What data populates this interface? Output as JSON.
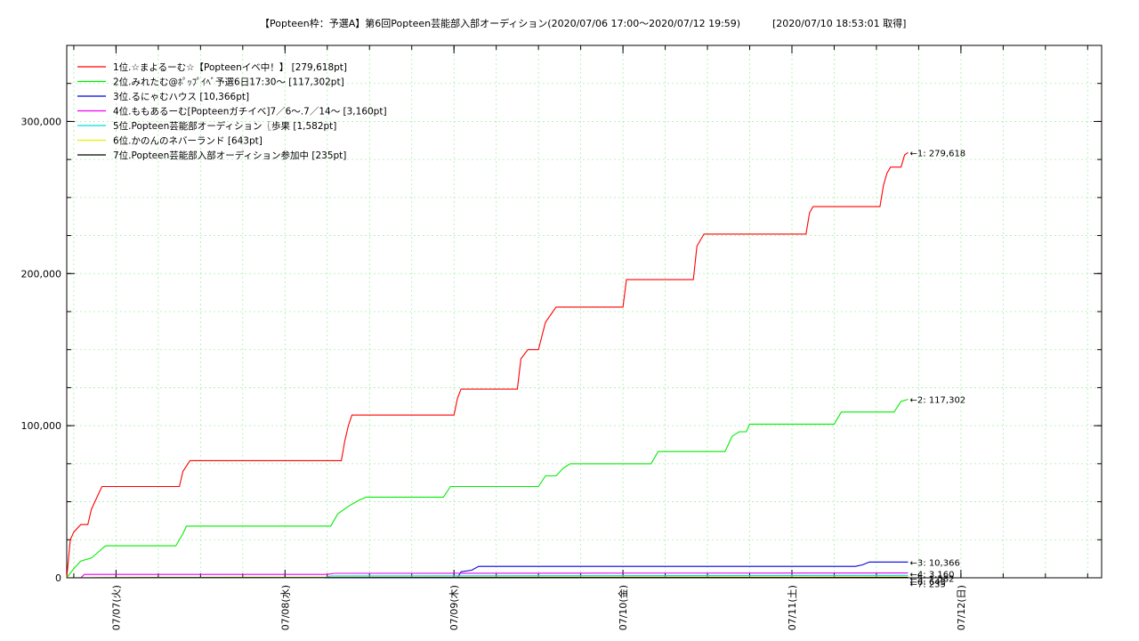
{
  "chart_data": {
    "type": "line",
    "title": "【Popteen枠：予選A】第6回Popteen芸能部入部オーディション(2020/07/06 17:00〜2020/07/12 19:59)",
    "timestamp": "[2020/07/10 18:53:01 取得]",
    "x_axis": {
      "range": [
        "2020-07-06T17:00",
        "2020-07-12T19:59"
      ],
      "tick_labels": [
        {
          "date": "2020-07-07T00:00",
          "label": "07/07(火)"
        },
        {
          "date": "2020-07-08T00:00",
          "label": "07/08(水)"
        },
        {
          "date": "2020-07-09T00:00",
          "label": "07/09(木)"
        },
        {
          "date": "2020-07-10T00:00",
          "label": "07/10(金)"
        },
        {
          "date": "2020-07-11T00:00",
          "label": "07/11(土)"
        },
        {
          "date": "2020-07-12T00:00",
          "label": "07/12(日)"
        }
      ]
    },
    "y_axis": {
      "range": [
        0,
        350000
      ],
      "tick_values": [
        0,
        100000,
        200000,
        300000
      ],
      "tick_labels": [
        "0",
        "100,000",
        "200,000",
        "300,000"
      ]
    },
    "grid": true,
    "legend_position": "top-left",
    "series": [
      {
        "name": "1位.☆まよるーむ☆【Popteenイベ中！】 [279,618pt]",
        "color": "#ff0000",
        "end_label": "←1: 279,618",
        "points": [
          [
            "2020-07-06T17:00",
            0
          ],
          [
            "2020-07-06T17:30",
            25000
          ],
          [
            "2020-07-06T18:00",
            30000
          ],
          [
            "2020-07-06T19:00",
            35000
          ],
          [
            "2020-07-06T20:00",
            35000
          ],
          [
            "2020-07-06T20:30",
            45000
          ],
          [
            "2020-07-06T21:30",
            55000
          ],
          [
            "2020-07-06T22:00",
            60000
          ],
          [
            "2020-07-07T09:00",
            60000
          ],
          [
            "2020-07-07T09:30",
            70000
          ],
          [
            "2020-07-07T10:30",
            77000
          ],
          [
            "2020-07-08T08:00",
            77000
          ],
          [
            "2020-07-08T08:30",
            90000
          ],
          [
            "2020-07-08T09:00",
            100000
          ],
          [
            "2020-07-08T09:30",
            107000
          ],
          [
            "2020-07-09T00:00",
            107000
          ],
          [
            "2020-07-09T00:30",
            118000
          ],
          [
            "2020-07-09T01:00",
            124000
          ],
          [
            "2020-07-09T09:00",
            124000
          ],
          [
            "2020-07-09T09:30",
            144000
          ],
          [
            "2020-07-09T10:30",
            150000
          ],
          [
            "2020-07-09T12:00",
            150000
          ],
          [
            "2020-07-09T13:00",
            168000
          ],
          [
            "2020-07-09T14:30",
            178000
          ],
          [
            "2020-07-10T00:00",
            178000
          ],
          [
            "2020-07-10T00:30",
            196000
          ],
          [
            "2020-07-10T10:00",
            196000
          ],
          [
            "2020-07-10T10:30",
            218000
          ],
          [
            "2020-07-10T11:30",
            226000
          ],
          [
            "2020-07-11T02:00",
            226000
          ],
          [
            "2020-07-11T02:30",
            240000
          ],
          [
            "2020-07-11T03:00",
            244000
          ],
          [
            "2020-07-11T12:30",
            244000
          ],
          [
            "2020-07-11T13:00",
            258000
          ],
          [
            "2020-07-11T13:30",
            266000
          ],
          [
            "2020-07-11T14:00",
            270000
          ],
          [
            "2020-07-11T15:30",
            270000
          ],
          [
            "2020-07-11T16:00",
            278000
          ],
          [
            "2020-07-11T16:30",
            279618
          ]
        ]
      },
      {
        "name": "2位.みれたむ@ﾎﾟｯﾌﾟｲﾍﾞ予選6日17:30〜 [117,302pt]",
        "color": "#00ee00",
        "end_label": "←2: 117,302",
        "points": [
          [
            "2020-07-06T17:00",
            0
          ],
          [
            "2020-07-06T18:00",
            6000
          ],
          [
            "2020-07-06T19:00",
            11000
          ],
          [
            "2020-07-06T20:30",
            13000
          ],
          [
            "2020-07-06T21:30",
            17000
          ],
          [
            "2020-07-06T22:30",
            21000
          ],
          [
            "2020-07-07T08:30",
            21000
          ],
          [
            "2020-07-07T09:30",
            29000
          ],
          [
            "2020-07-07T10:00",
            34000
          ],
          [
            "2020-07-08T06:30",
            34000
          ],
          [
            "2020-07-08T07:30",
            42000
          ],
          [
            "2020-07-08T09:00",
            47000
          ],
          [
            "2020-07-08T10:30",
            51000
          ],
          [
            "2020-07-08T11:30",
            53000
          ],
          [
            "2020-07-08T22:30",
            53000
          ],
          [
            "2020-07-08T23:30",
            60000
          ],
          [
            "2020-07-09T12:00",
            60000
          ],
          [
            "2020-07-09T13:00",
            67000
          ],
          [
            "2020-07-09T14:30",
            67000
          ],
          [
            "2020-07-09T15:30",
            72000
          ],
          [
            "2020-07-09T16:30",
            75000
          ],
          [
            "2020-07-10T04:00",
            75000
          ],
          [
            "2020-07-10T05:00",
            83000
          ],
          [
            "2020-07-10T14:30",
            83000
          ],
          [
            "2020-07-10T15:30",
            93000
          ],
          [
            "2020-07-10T16:30",
            96000
          ],
          [
            "2020-07-10T17:30",
            96000
          ],
          [
            "2020-07-10T18:00",
            101000
          ],
          [
            "2020-07-11T06:00",
            101000
          ],
          [
            "2020-07-11T07:00",
            109000
          ],
          [
            "2020-07-11T14:30",
            109000
          ],
          [
            "2020-07-11T15:30",
            116000
          ],
          [
            "2020-07-11T16:30",
            117302
          ]
        ]
      },
      {
        "name": "3位.るにゃむハウス [10,366pt]",
        "color": "#0000dd",
        "end_label": "←3: 10,366",
        "points": [
          [
            "2020-07-06T17:00",
            0
          ],
          [
            "2020-07-09T00:30",
            0
          ],
          [
            "2020-07-09T01:00",
            4000
          ],
          [
            "2020-07-09T02:30",
            5000
          ],
          [
            "2020-07-09T03:30",
            7500
          ],
          [
            "2020-07-11T09:00",
            7500
          ],
          [
            "2020-07-11T10:00",
            8500
          ],
          [
            "2020-07-11T11:00",
            10366
          ],
          [
            "2020-07-11T16:30",
            10366
          ]
        ]
      },
      {
        "name": "4位.ももあるーむ[Popteenガチイベ]7／6〜.7／14〜 [3,160pt]",
        "color": "#ee00ee",
        "end_label": "←4: 3,160",
        "points": [
          [
            "2020-07-06T17:00",
            0
          ],
          [
            "2020-07-06T19:00",
            0
          ],
          [
            "2020-07-06T19:30",
            2200
          ],
          [
            "2020-07-08T06:00",
            2200
          ],
          [
            "2020-07-08T07:00",
            2900
          ],
          [
            "2020-07-11T16:30",
            3160
          ]
        ]
      },
      {
        "name": "5位.Popteen芸能部オーディション〖歩果 [1,582pt]",
        "color": "#00dddd",
        "end_label": "←5: 1,582",
        "points": [
          [
            "2020-07-06T17:00",
            0
          ],
          [
            "2020-07-08T05:30",
            0
          ],
          [
            "2020-07-08T06:30",
            1200
          ],
          [
            "2020-07-11T16:30",
            1582
          ]
        ]
      },
      {
        "name": "6位.かのんのネバーランド [643pt]",
        "color": "#eeee00",
        "end_label": "←6: 643",
        "points": [
          [
            "2020-07-06T17:00",
            0
          ],
          [
            "2020-07-07T12:00",
            300
          ],
          [
            "2020-07-11T16:30",
            643
          ]
        ]
      },
      {
        "name": "7位.Popteen芸能部入部オーディション参加中 [235pt]",
        "color": "#000000",
        "end_label": "←7: 235",
        "points": [
          [
            "2020-07-06T17:00",
            0
          ],
          [
            "2020-07-07T06:00",
            100
          ],
          [
            "2020-07-11T16:30",
            235
          ]
        ]
      }
    ]
  }
}
